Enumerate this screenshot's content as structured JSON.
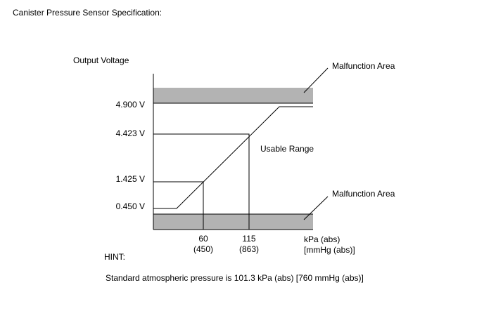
{
  "header": {
    "title": "Canister Pressure Sensor Specification:"
  },
  "diagram": {
    "y_axis_label": "Output Voltage",
    "y_labels": [
      "4.900 V",
      "4.423 V",
      "1.425 V",
      "0.450 V"
    ],
    "x_labels": [
      {
        "kpa": "60",
        "mmhg": "(450)"
      },
      {
        "kpa": "115",
        "mmhg": "(863)"
      }
    ],
    "x_unit": {
      "kpa": "kPa (abs)",
      "mmhg": "[mmHg (abs)]"
    },
    "areas": {
      "upper": "Malfunction Area",
      "middle": "Usable Range",
      "lower": "Malfunction Area"
    }
  },
  "hint": {
    "label": "HINT:",
    "text": "Standard atmospheric pressure is 101.3 kPa (abs) [760 mmHg (abs)]"
  }
}
